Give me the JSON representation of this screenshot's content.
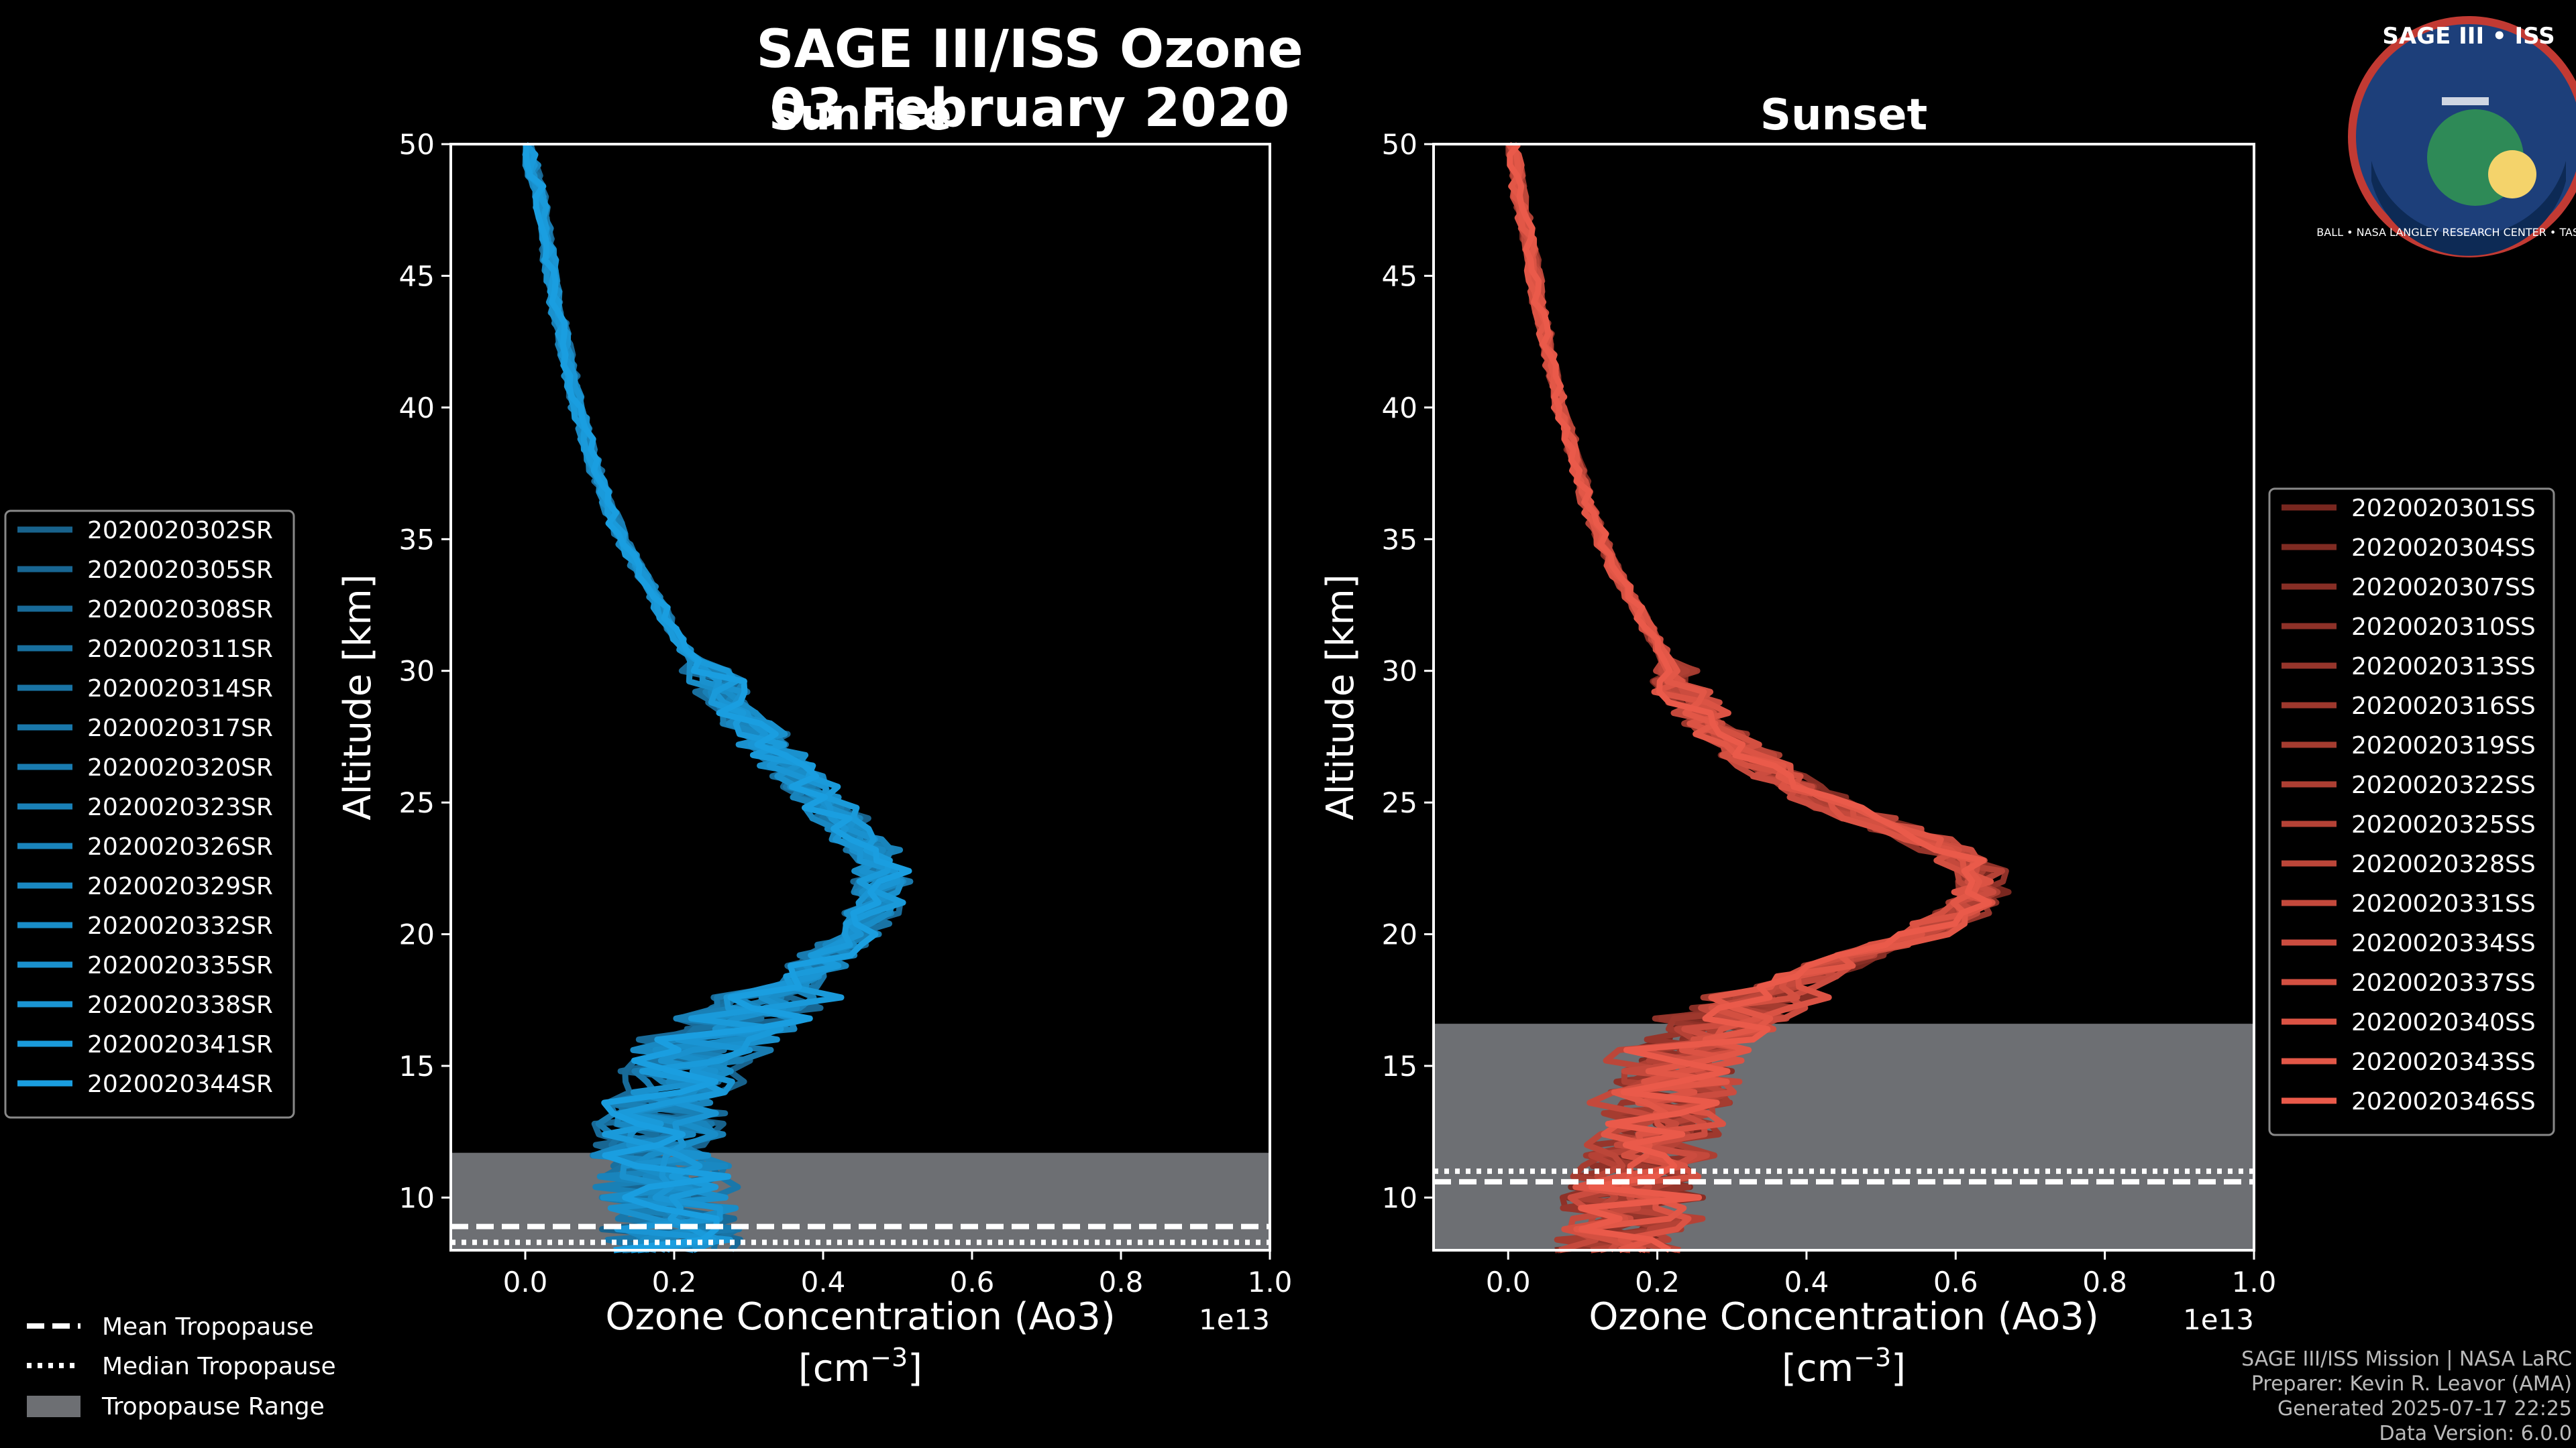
{
  "title": "SAGE III/ISS Ozone",
  "date": "03 February 2020",
  "logo": {
    "top": "SAGE III • ISS",
    "ring": "BALL • NASA LANGLEY RESEARCH CENTER • TAS-I • ESA"
  },
  "credits": [
    "SAGE III/ISS Mission | NASA LaRC",
    "Preparer: Kevin R. Leavor (AMA)",
    "Generated 2025-07-17 22:25",
    "Data Version: 6.0.0"
  ],
  "colors": {
    "sunrise": "#1a9ee0",
    "sunset": "#ea5a4a",
    "tropopause_range": "#6d6f73",
    "sunrise_dark": "#17415f",
    "sunset_dark": "#3a0c08"
  },
  "tropopause_legend": {
    "mean": "Mean Tropopause",
    "median": "Median Tropopause",
    "range": "Tropopause Range"
  },
  "chart_data": [
    {
      "type": "line",
      "title": "Sunrise",
      "xlabel": "Ozone Concentration (Ao3)",
      "xunits": "[cm",
      "xunits_exp": "−3",
      "xunits_close": "]",
      "ylabel": "Altitude [km]",
      "xlim": [
        -0.1,
        1.0
      ],
      "ylim": [
        8,
        50
      ],
      "x_multiplier": "1e13",
      "x_ticks": [
        "0.0",
        "0.2",
        "0.4",
        "0.6",
        "0.8",
        "1.0"
      ],
      "y_ticks": [
        "10",
        "15",
        "20",
        "25",
        "30",
        "35",
        "40",
        "45",
        "50"
      ],
      "tropopause": {
        "mean": 8.9,
        "median": 8.3,
        "range": [
          8,
          11.7
        ]
      },
      "mean_profile": {
        "altitude": [
          8,
          9,
          10,
          11,
          12,
          13,
          14,
          15,
          16,
          17,
          18,
          19,
          20,
          21,
          22,
          23,
          24,
          25,
          26,
          27,
          28,
          29,
          30,
          31,
          32,
          33,
          34,
          35,
          36,
          38,
          40,
          42,
          44,
          46,
          48,
          50
        ],
        "ozone": [
          0.2,
          0.2,
          0.19,
          0.19,
          0.18,
          0.18,
          0.19,
          0.21,
          0.25,
          0.3,
          0.36,
          0.4,
          0.44,
          0.47,
          0.48,
          0.47,
          0.44,
          0.4,
          0.37,
          0.33,
          0.3,
          0.27,
          0.24,
          0.21,
          0.19,
          0.17,
          0.15,
          0.13,
          0.115,
          0.09,
          0.07,
          0.055,
          0.04,
          0.03,
          0.02,
          0.0
        ]
      },
      "series": [
        {
          "name": "2020020302SR"
        },
        {
          "name": "2020020305SR"
        },
        {
          "name": "2020020308SR"
        },
        {
          "name": "2020020311SR"
        },
        {
          "name": "2020020314SR"
        },
        {
          "name": "2020020317SR"
        },
        {
          "name": "2020020320SR"
        },
        {
          "name": "2020020323SR"
        },
        {
          "name": "2020020326SR"
        },
        {
          "name": "2020020329SR"
        },
        {
          "name": "2020020332SR"
        },
        {
          "name": "2020020335SR"
        },
        {
          "name": "2020020338SR"
        },
        {
          "name": "2020020341SR"
        },
        {
          "name": "2020020344SR"
        }
      ]
    },
    {
      "type": "line",
      "title": "Sunset",
      "xlabel": "Ozone Concentration (Ao3)",
      "xunits": "[cm",
      "xunits_exp": "−3",
      "xunits_close": "]",
      "ylabel": "Altitude [km]",
      "xlim": [
        -0.1,
        1.0
      ],
      "ylim": [
        8,
        50
      ],
      "x_multiplier": "1e13",
      "x_ticks": [
        "0.0",
        "0.2",
        "0.4",
        "0.6",
        "0.8",
        "1.0"
      ],
      "y_ticks": [
        "10",
        "15",
        "20",
        "25",
        "30",
        "35",
        "40",
        "45",
        "50"
      ],
      "tropopause": {
        "mean": 10.6,
        "median": 11.0,
        "range": [
          8,
          16.6
        ]
      },
      "mean_profile": {
        "altitude": [
          8,
          9,
          10,
          11,
          12,
          13,
          14,
          15,
          16,
          17,
          18,
          19,
          20,
          21,
          22,
          23,
          24,
          25,
          26,
          27,
          28,
          29,
          30,
          31,
          32,
          33,
          34,
          35,
          36,
          38,
          40,
          42,
          44,
          46,
          48,
          50
        ],
        "ozone": [
          0.15,
          0.16,
          0.17,
          0.18,
          0.19,
          0.2,
          0.21,
          0.22,
          0.25,
          0.3,
          0.37,
          0.45,
          0.55,
          0.62,
          0.64,
          0.6,
          0.52,
          0.43,
          0.36,
          0.31,
          0.27,
          0.24,
          0.22,
          0.2,
          0.18,
          0.16,
          0.14,
          0.125,
          0.11,
          0.09,
          0.07,
          0.055,
          0.04,
          0.03,
          0.015,
          0.005
        ]
      },
      "series": [
        {
          "name": "2020020301SS"
        },
        {
          "name": "2020020304SS"
        },
        {
          "name": "2020020307SS"
        },
        {
          "name": "2020020310SS"
        },
        {
          "name": "2020020313SS"
        },
        {
          "name": "2020020316SS"
        },
        {
          "name": "2020020319SS"
        },
        {
          "name": "2020020322SS"
        },
        {
          "name": "2020020325SS"
        },
        {
          "name": "2020020328SS"
        },
        {
          "name": "2020020331SS"
        },
        {
          "name": "2020020334SS"
        },
        {
          "name": "2020020337SS"
        },
        {
          "name": "2020020340SS"
        },
        {
          "name": "2020020343SS"
        },
        {
          "name": "2020020346SS"
        }
      ]
    }
  ]
}
